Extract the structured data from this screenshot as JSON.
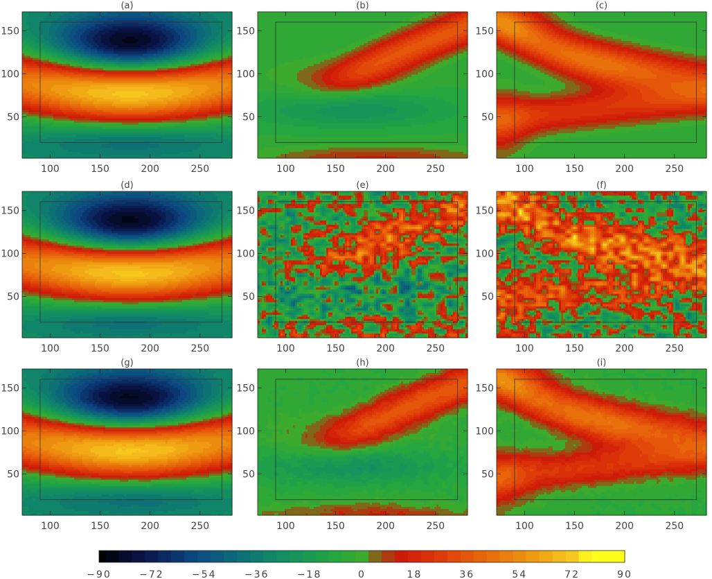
{
  "chart_data": {
    "type": "heatmap",
    "layout": {
      "rows": 3,
      "cols": 3
    },
    "xlim": [
      72,
      282
    ],
    "ylim": [
      2,
      172
    ],
    "x_ticks": [
      100,
      150,
      200,
      250
    ],
    "y_ticks": [
      50,
      100,
      150
    ],
    "inner_box": {
      "x": [
        90,
        272
      ],
      "y": [
        20,
        160
      ]
    },
    "colorbar": {
      "min": -90,
      "max": 90,
      "ticks": [
        -90,
        -72,
        -54,
        -36,
        -18,
        0,
        18,
        36,
        54,
        72,
        90
      ],
      "tick_labels": [
        "−90",
        "−72",
        "−54",
        "−36",
        "−18",
        "0",
        "18",
        "36",
        "54",
        "72",
        "90"
      ],
      "colors": {
        "min": "#000000",
        "dark_blue": "#0a1a4a",
        "teal": "#0a6a78",
        "green": "#22aa3a",
        "red": "#d01a08",
        "orange": "#e88a10",
        "max": "#ffff20"
      }
    },
    "panels": [
      {
        "title": "(a)",
        "kind": "A",
        "noise": 0
      },
      {
        "title": "(b)",
        "kind": "B",
        "noise": 0
      },
      {
        "title": "(c)",
        "kind": "C",
        "noise": 0
      },
      {
        "title": "(d)",
        "kind": "A",
        "noise": 0.02
      },
      {
        "title": "(e)",
        "kind": "B",
        "noise": 0.9
      },
      {
        "title": "(f)",
        "kind": "C",
        "noise": 0.9
      },
      {
        "title": "(g)",
        "kind": "A",
        "noise": 0.03
      },
      {
        "title": "(h)",
        "kind": "B",
        "noise": 0.08
      },
      {
        "title": "(i)",
        "kind": "C",
        "noise": 0.08
      }
    ]
  }
}
